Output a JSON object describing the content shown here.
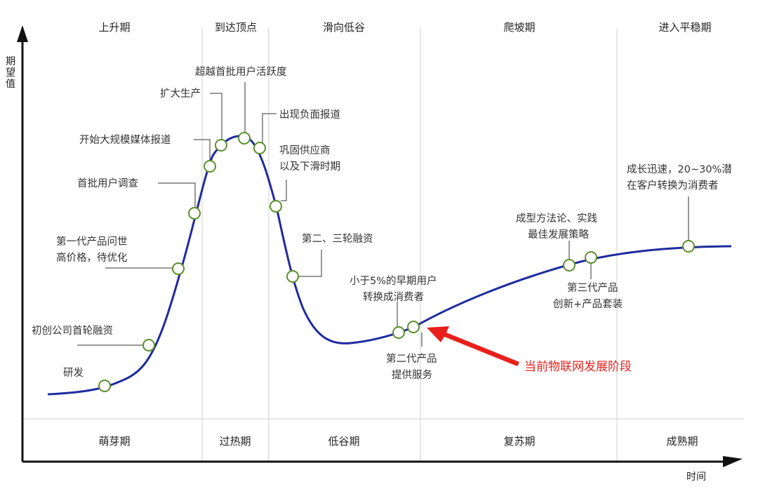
{
  "y_axis_label": "期望值",
  "x_axis_label": "时间",
  "top_phases": [
    "上升期",
    "到达顶点",
    "滑向低谷",
    "爬坡期",
    "进入平稳期"
  ],
  "bottom_phases": [
    "萌芽期",
    "过热期",
    "低谷期",
    "复苏期",
    "成熟期"
  ],
  "annotations": [
    {
      "id": "a1",
      "lines": [
        "研发"
      ]
    },
    {
      "id": "a2",
      "lines": [
        "初创公司首轮融资"
      ]
    },
    {
      "id": "a3",
      "lines": [
        "第一代产品问世",
        "高价格，待优化"
      ]
    },
    {
      "id": "a4",
      "lines": [
        "首批用户调查"
      ]
    },
    {
      "id": "a5",
      "lines": [
        "开始大规模媒体报道"
      ]
    },
    {
      "id": "a6",
      "lines": [
        "扩大生产"
      ]
    },
    {
      "id": "a7",
      "lines": [
        "超越首批用户活跃度"
      ]
    },
    {
      "id": "a8",
      "lines": [
        "出现负面报道"
      ]
    },
    {
      "id": "a9",
      "lines": [
        "巩固供应商",
        "以及下滑时期"
      ]
    },
    {
      "id": "a10",
      "lines": [
        "第二、三轮融资"
      ]
    },
    {
      "id": "a11",
      "lines": [
        "小于5%的早期用户",
        "转换成消费者"
      ]
    },
    {
      "id": "a12",
      "lines": [
        "第二代产品",
        "提供服务"
      ]
    },
    {
      "id": "a13",
      "lines": [
        "成型方法论、实践",
        "最佳发展策略"
      ]
    },
    {
      "id": "a14",
      "lines": [
        "第三代产品",
        "创新+产品套装"
      ]
    },
    {
      "id": "a15",
      "lines": [
        "成长迅速，20~30%潜",
        "在客户转换为消费者"
      ]
    }
  ],
  "current_stage_marker": "当前物联网发展阶段",
  "colors": {
    "curve": "#1f2b9e",
    "node_stroke": "#5b8f2a",
    "leader": "#333333",
    "marker": "#e8201c",
    "divider": "#d0d0d0"
  }
}
